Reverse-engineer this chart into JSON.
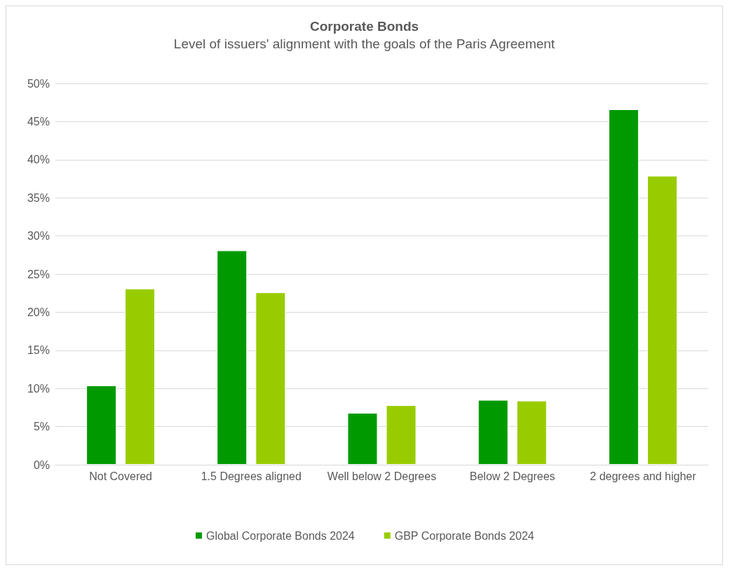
{
  "chart_data": {
    "type": "bar",
    "title": "Corporate Bonds",
    "subtitle": "Level of issuers' alignment with the goals of the Paris Agreement",
    "categories": [
      "Not Covered",
      "1.5 Degrees aligned",
      "Well below 2 Degrees",
      "Below 2 Degrees",
      "2 degrees and higher"
    ],
    "series": [
      {
        "name": "Global Corporate Bonds 2024",
        "color": "#009a00",
        "values": [
          10.4,
          28.1,
          6.8,
          8.5,
          46.6
        ]
      },
      {
        "name": "GBP Corporate Bonds 2024",
        "color": "#99cc00",
        "values": [
          23.1,
          22.6,
          7.8,
          8.4,
          37.9
        ]
      }
    ],
    "ylim": [
      0,
      50
    ],
    "yticks": [
      {
        "value": 0,
        "label": "0%"
      },
      {
        "value": 5,
        "label": "5%"
      },
      {
        "value": 10,
        "label": "10%"
      },
      {
        "value": 15,
        "label": "15%"
      },
      {
        "value": 20,
        "label": "20%"
      },
      {
        "value": 25,
        "label": "25%"
      },
      {
        "value": 30,
        "label": "30%"
      },
      {
        "value": 35,
        "label": "35%"
      },
      {
        "value": 40,
        "label": "40%"
      },
      {
        "value": 45,
        "label": "45%"
      },
      {
        "value": 50,
        "label": "50%"
      }
    ],
    "grid": "y",
    "legend": "bottom"
  }
}
